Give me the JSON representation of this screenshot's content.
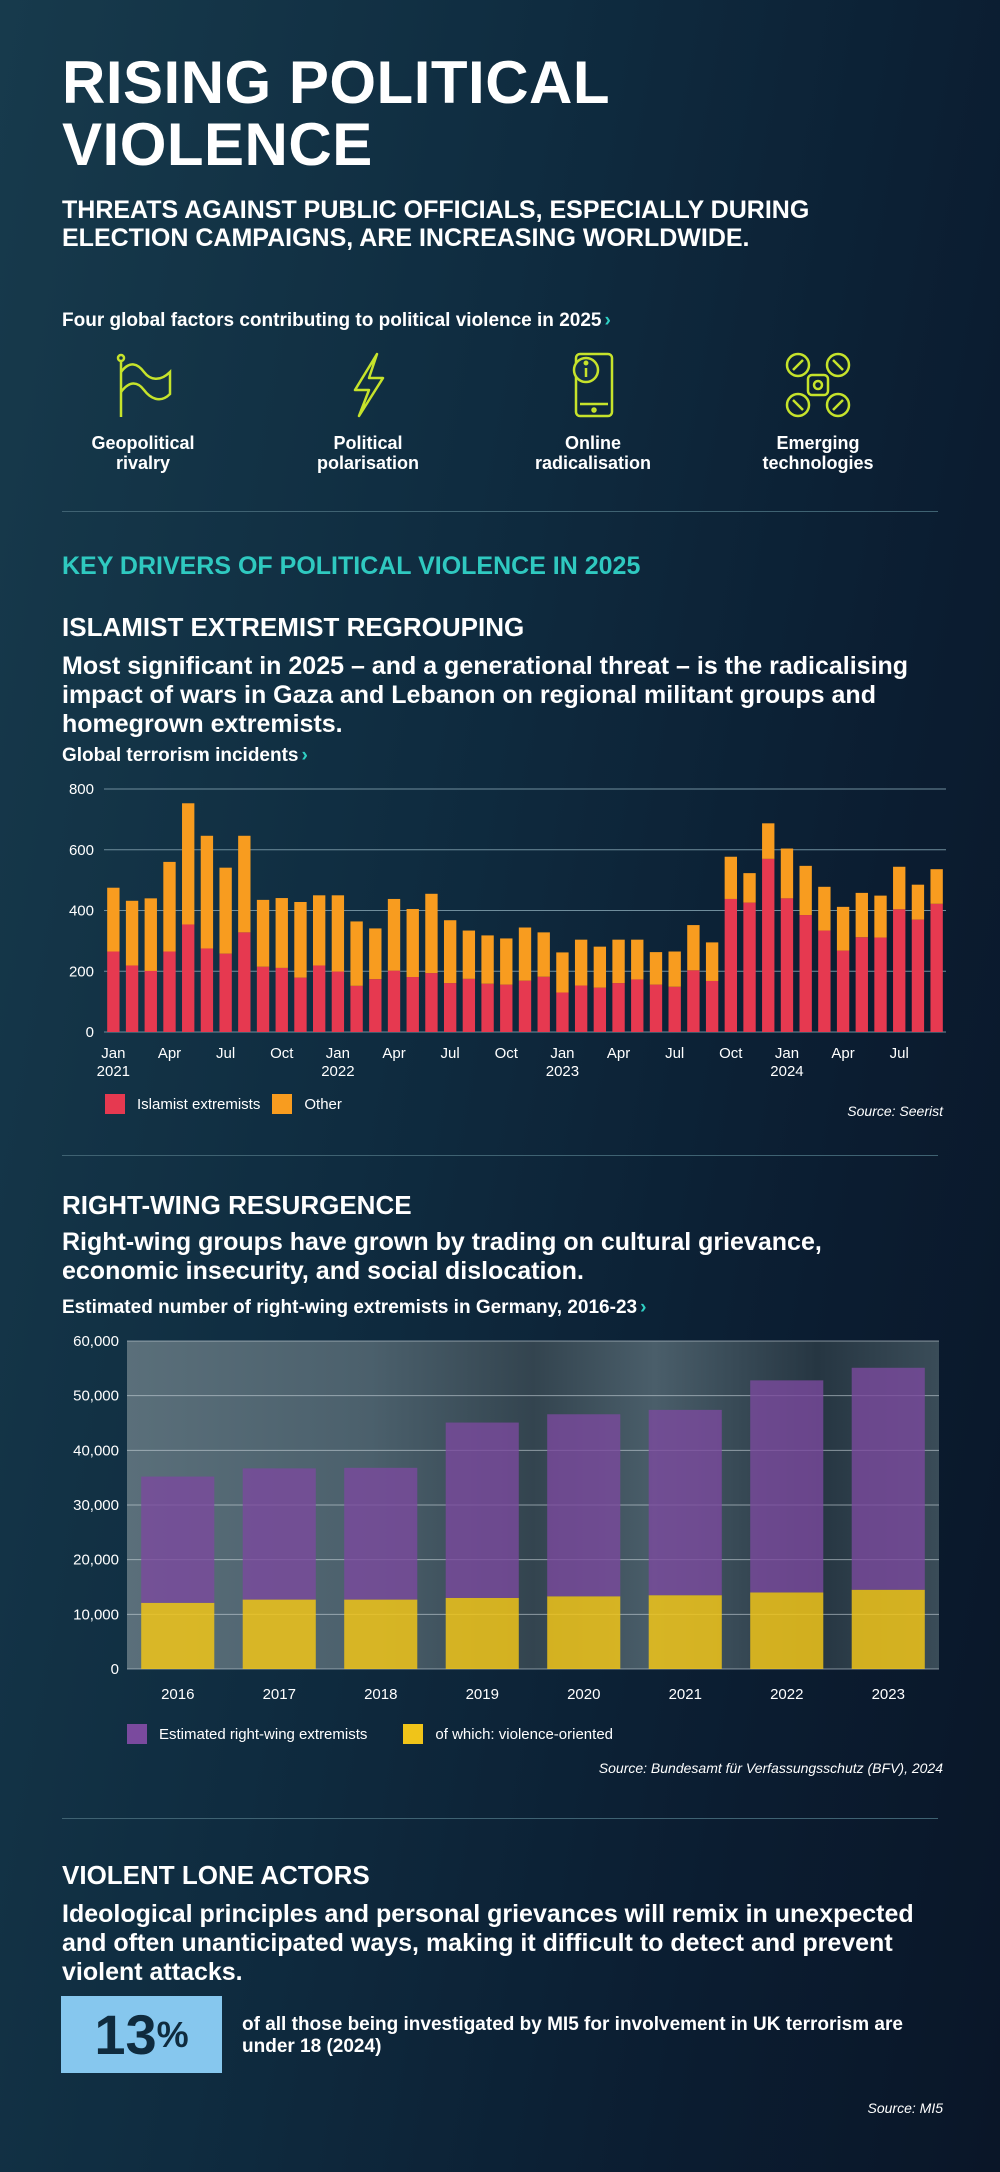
{
  "header": {
    "title_line1": "RISING POLITICAL",
    "title_line2": "VIOLENCE",
    "subtitle": "THREATS AGAINST PUBLIC OFFICIALS, ESPECIALLY DURING ELECTION CAMPAIGNS, ARE INCREASING WORLDWIDE."
  },
  "factors": {
    "heading": "Four global factors contributing to political violence in 2025",
    "chevron": "›",
    "items": [
      {
        "icon": "flag-icon",
        "line1": "Geopolitical",
        "line2": "rivalry"
      },
      {
        "icon": "lightning-icon",
        "line1": "Political",
        "line2": "polarisation"
      },
      {
        "icon": "phone-alert-icon",
        "line1": "Online",
        "line2": "radicalisation"
      },
      {
        "icon": "drone-icon",
        "line1": "Emerging",
        "line2": "technologies"
      }
    ]
  },
  "key_drivers": "KEY DRIVERS OF POLITICAL VIOLENCE IN 2025",
  "islamist": {
    "heading": "ISLAMIST EXTREMIST REGROUPING",
    "text": "Most significant in 2025 – and a generational threat – is the radicalising impact of wars in Gaza and Lebanon on regional militant groups and homegrown extremists.",
    "chart_title": "Global terrorism incidents",
    "source": "Source: Seerist"
  },
  "rightwing": {
    "heading": "RIGHT-WING RESURGENCE",
    "text": "Right-wing groups have grown by trading on cultural grievance, economic insecurity, and social dislocation.",
    "chart_title": "Estimated number of right-wing extremists in Germany, 2016-23",
    "source": "Source: Bundesamt für Verfassungsschutz (BFV), 2024"
  },
  "lone": {
    "heading": "VIOLENT LONE ACTORS",
    "text": "Ideological principles and personal grievances will remix in unexpected and often unanticipated ways, making it difficult to detect and prevent violent attacks.",
    "stat_value": "13",
    "stat_unit": "%",
    "stat_text": "of all those being investigated by MI5 for involvement in UK terrorism are under 18 (2024)",
    "source": "Source: MI5"
  },
  "colors": {
    "accent_teal": "#2fc9c0",
    "icon_lime": "#c6e32b",
    "islamist": "#e63950",
    "other": "#f89c1f",
    "rw_total": "#7a4a9e",
    "rw_violent": "#f0c419",
    "stat_box": "#86c7ee"
  },
  "chart_data": [
    {
      "type": "bar",
      "stacked": true,
      "title": "Global terrorism incidents",
      "ylim": [
        0,
        800
      ],
      "yticks": [
        0,
        200,
        400,
        600,
        800
      ],
      "grid": true,
      "legend": "bottom-left",
      "x_tick_labels": [
        {
          "m": "Jan",
          "y": "2021"
        },
        {
          "m": "Apr"
        },
        {
          "m": "Jul"
        },
        {
          "m": "Oct"
        },
        {
          "m": "Jan",
          "y": "2022"
        },
        {
          "m": "Apr"
        },
        {
          "m": "Jul"
        },
        {
          "m": "Oct"
        },
        {
          "m": "Jan",
          "y": "2023"
        },
        {
          "m": "Apr"
        },
        {
          "m": "Jul"
        },
        {
          "m": "Oct"
        },
        {
          "m": "Jan",
          "y": "2024"
        },
        {
          "m": "Apr"
        },
        {
          "m": "Jul"
        }
      ],
      "categories": [
        "2021-01",
        "2021-02",
        "2021-03",
        "2021-04",
        "2021-05",
        "2021-06",
        "2021-07",
        "2021-08",
        "2021-09",
        "2021-10",
        "2021-11",
        "2021-12",
        "2022-01",
        "2022-02",
        "2022-03",
        "2022-04",
        "2022-05",
        "2022-06",
        "2022-07",
        "2022-08",
        "2022-09",
        "2022-10",
        "2022-11",
        "2022-12",
        "2023-01",
        "2023-02",
        "2023-03",
        "2023-04",
        "2023-05",
        "2023-06",
        "2023-07",
        "2023-08",
        "2023-09",
        "2023-10",
        "2023-11",
        "2023-12",
        "2024-01",
        "2024-02",
        "2024-03",
        "2024-04",
        "2024-05",
        "2024-06",
        "2024-07",
        "2024-08",
        "2024-09"
      ],
      "series": [
        {
          "name": "Islamist extremists",
          "values": [
            265,
            219,
            201,
            265,
            354,
            275,
            258,
            328,
            215,
            211,
            179,
            219,
            199,
            152,
            174,
            202,
            181,
            194,
            161,
            175,
            159,
            156,
            169,
            182,
            130,
            153,
            146,
            161,
            173,
            156,
            149,
            203,
            168,
            438,
            426,
            570,
            440,
            385,
            334,
            268,
            312,
            311,
            404,
            370,
            422
          ]
        },
        {
          "name": "Other",
          "values": [
            210,
            213,
            239,
            295,
            399,
            371,
            283,
            318,
            220,
            230,
            249,
            231,
            251,
            212,
            167,
            236,
            224,
            261,
            207,
            159,
            159,
            152,
            175,
            146,
            132,
            151,
            135,
            143,
            131,
            107,
            116,
            149,
            127,
            139,
            97,
            117,
            164,
            162,
            144,
            144,
            146,
            138,
            140,
            115,
            114
          ]
        }
      ]
    },
    {
      "type": "bar",
      "stacked": true,
      "title": "Estimated number of right-wing extremists in Germany, 2016-23",
      "ylim": [
        0,
        60000
      ],
      "yticks": [
        "0",
        "10,000",
        "20,000",
        "30,000",
        "40,000",
        "50,000",
        "60,000"
      ],
      "grid": true,
      "legend": "bottom-left",
      "categories": [
        "2016",
        "2017",
        "2018",
        "2019",
        "2020",
        "2021",
        "2022",
        "2023"
      ],
      "series": [
        {
          "name": "of which: violence-oriented",
          "values": [
            12100,
            12700,
            12700,
            13000,
            13300,
            13500,
            14000,
            14500
          ]
        },
        {
          "name": "Estimated right-wing extremists",
          "values": [
            23100,
            24000,
            24100,
            32080,
            33300,
            33900,
            38800,
            40600
          ]
        }
      ]
    }
  ]
}
